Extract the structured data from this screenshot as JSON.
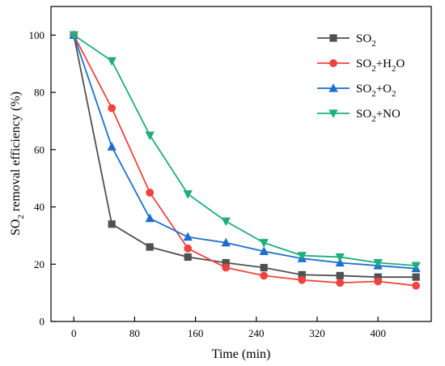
{
  "chart_data": {
    "type": "line",
    "xlabel": "Time (min)",
    "ylabel": {
      "pre": "SO",
      "sub": "2",
      "post": " removal efficiency (%)"
    },
    "xlim": [
      -30,
      470
    ],
    "ylim": [
      0,
      110
    ],
    "xticks": [
      0,
      80,
      160,
      240,
      320,
      400
    ],
    "yticks": [
      0,
      20,
      40,
      60,
      80,
      100
    ],
    "x": [
      0,
      50,
      100,
      150,
      200,
      250,
      300,
      350,
      400,
      450
    ],
    "grid": false,
    "legend_position": "top-right",
    "series": [
      {
        "name": "SO2",
        "label_parts": [
          {
            "t": "SO"
          },
          {
            "t": "2",
            "sub": true
          }
        ],
        "color": "#505050",
        "marker": "square",
        "values": [
          100,
          34,
          26,
          22.5,
          20.5,
          18.8,
          16.3,
          16,
          15.5,
          15.5
        ]
      },
      {
        "name": "SO2+H2O",
        "label_parts": [
          {
            "t": "SO"
          },
          {
            "t": "2",
            "sub": true
          },
          {
            "t": "+H"
          },
          {
            "t": "2",
            "sub": true
          },
          {
            "t": "O"
          }
        ],
        "color": "#f0433f",
        "marker": "circle",
        "values": [
          100,
          74.5,
          45,
          25.5,
          18.8,
          16,
          14.5,
          13.5,
          14,
          12.5
        ]
      },
      {
        "name": "SO2+O2",
        "label_parts": [
          {
            "t": "SO"
          },
          {
            "t": "2",
            "sub": true
          },
          {
            "t": "+O"
          },
          {
            "t": "2",
            "sub": true
          }
        ],
        "color": "#1c6fcf",
        "marker": "triangle-up",
        "values": [
          100,
          61,
          36,
          29.5,
          27.5,
          24.5,
          22,
          20.5,
          19.5,
          18.5
        ]
      },
      {
        "name": "SO2+NO",
        "label_parts": [
          {
            "t": "SO"
          },
          {
            "t": "2",
            "sub": true
          },
          {
            "t": "+NO"
          }
        ],
        "color": "#1fae7a",
        "marker": "triangle-down",
        "values": [
          100,
          91,
          65,
          44.5,
          35,
          27.5,
          23,
          22.5,
          20.5,
          19.5
        ]
      }
    ]
  }
}
